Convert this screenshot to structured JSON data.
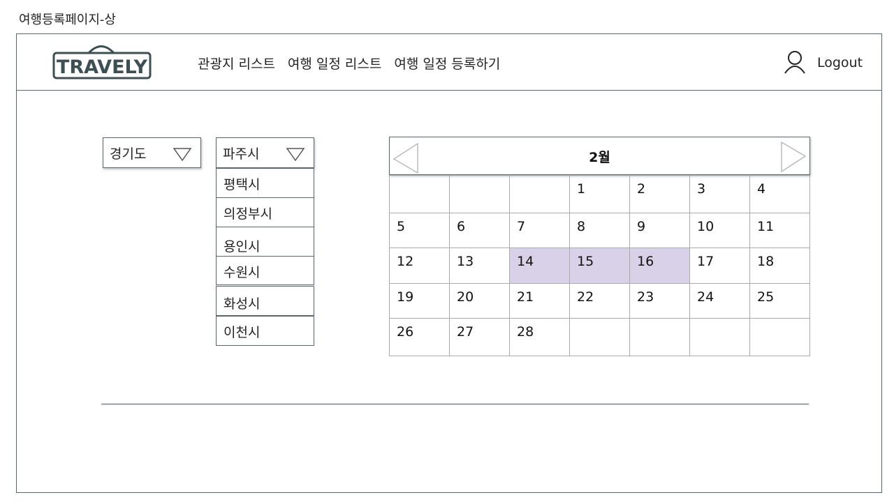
{
  "page_label": "여행등록페이지-상",
  "header": {
    "logo_text": "TRAVELY",
    "nav": [
      "관광지 리스트",
      "여행 일정 리스트",
      "여행 일정 등록하기"
    ],
    "logout_label": "Logout"
  },
  "province_select": {
    "value": "경기도"
  },
  "city_select": {
    "value": "파주시",
    "options": [
      "평택시",
      "의정부시",
      "용인시",
      "수원시",
      "화성시",
      "이천시"
    ]
  },
  "calendar": {
    "month_label": "2월",
    "days": [
      "",
      "",
      "",
      "1",
      "2",
      "3",
      "4",
      "5",
      "6",
      "7",
      "8",
      "9",
      "10",
      "11",
      "12",
      "13",
      "14",
      "15",
      "16",
      "17",
      "18",
      "19",
      "20",
      "21",
      "22",
      "23",
      "24",
      "25",
      "26",
      "27",
      "28",
      "",
      "",
      "",
      ""
    ],
    "selected": [
      "14",
      "15",
      "16"
    ],
    "selected_color": "#d9d1e7"
  },
  "colors": {
    "frame": "#59646b",
    "logo": "#3e4f54"
  }
}
